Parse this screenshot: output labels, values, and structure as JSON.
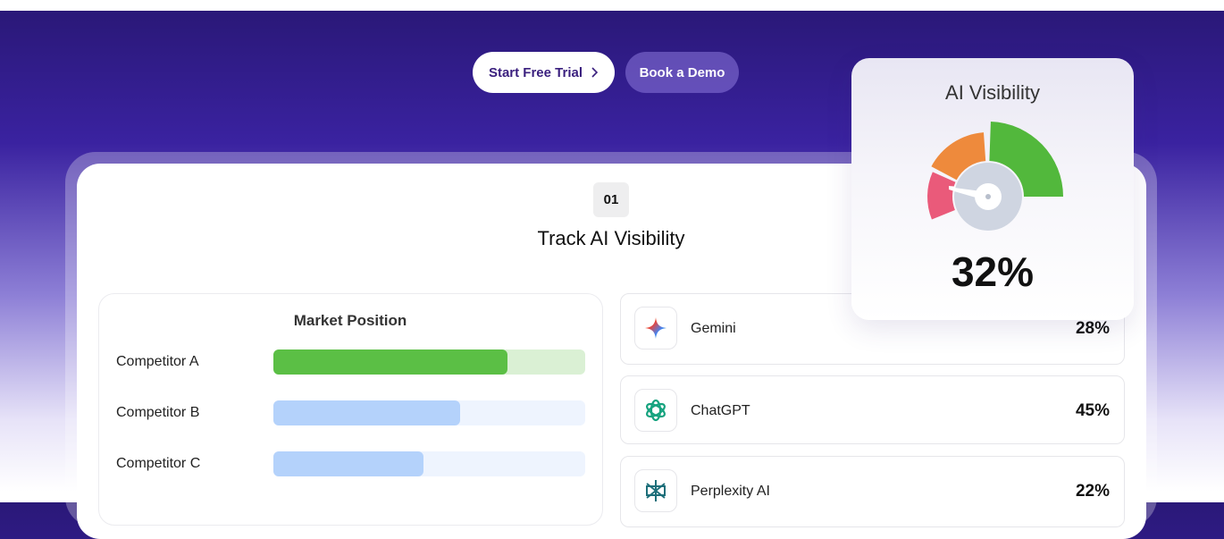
{
  "buttons": {
    "start": "Start Free Trial",
    "demo": "Book a Demo"
  },
  "section": {
    "number": "01",
    "title": "Track AI Visibility"
  },
  "market_position": {
    "title": "Market Position",
    "xlim": [
      0,
      100
    ],
    "bars": [
      {
        "label": "Competitor A",
        "value": 75,
        "color": "#5bbf45",
        "track": "#daf0d4"
      },
      {
        "label": "Competitor B",
        "value": 60,
        "color": "#b4d2fb",
        "track": "#eef4fe"
      },
      {
        "label": "Competitor C",
        "value": 48,
        "color": "#b4d2fb",
        "track": "#eef4fe"
      }
    ]
  },
  "platforms": [
    {
      "name": "Gemini",
      "share": "28%"
    },
    {
      "name": "ChatGPT",
      "share": "45%"
    },
    {
      "name": "Perplexity AI",
      "share": "22%"
    }
  ],
  "visibility_card": {
    "title": "AI Visibility",
    "score": "32%"
  }
}
